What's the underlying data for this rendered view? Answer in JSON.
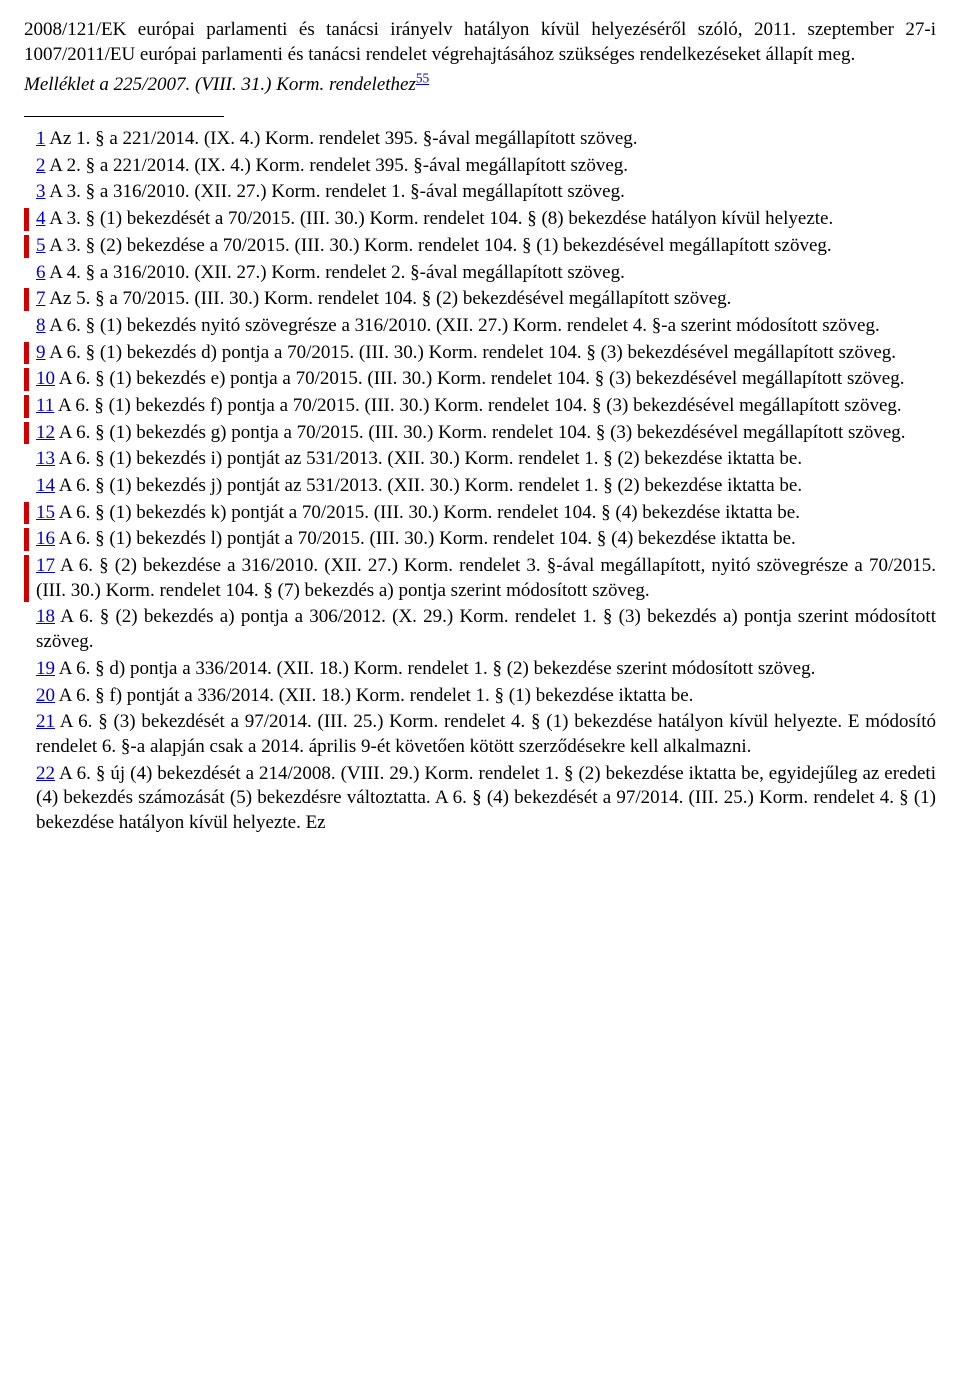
{
  "intro": {
    "p1": "2008/121/EK európai parlamenti és tanácsi irányelv hatályon kívül helyezéséről szóló, 2011. szeptember 27-i 1007/2011/EU európai parlamenti és tanácsi rendelet végrehajtásához szükséges rendelkezéseket állapít meg.",
    "p2_pre": "Melléklet a 225/2007. (VIII. 31.) Korm. rendelethez",
    "p2_sup": "55"
  },
  "footnotes": [
    {
      "n": "1",
      "changed": false,
      "text": " Az 1. § a 221/2014. (IX. 4.) Korm. rendelet 395. §-ával megállapított szöveg."
    },
    {
      "n": "2",
      "changed": false,
      "text": " A 2. § a 221/2014. (IX. 4.) Korm. rendelet 395. §-ával megállapított szöveg."
    },
    {
      "n": "3",
      "changed": false,
      "text": " A 3. § a 316/2010. (XII. 27.) Korm. rendelet 1. §-ával megállapított szöveg."
    },
    {
      "n": "4",
      "changed": true,
      "text": " A 3. § (1) bekezdését a 70/2015. (III. 30.) Korm. rendelet 104. § (8) bekezdése hatályon kívül helyezte."
    },
    {
      "n": "5",
      "changed": true,
      "text": " A 3. § (2) bekezdése a 70/2015. (III. 30.) Korm. rendelet 104. § (1) bekezdésével megállapított szöveg."
    },
    {
      "n": "6",
      "changed": false,
      "text": " A 4. § a 316/2010. (XII. 27.) Korm. rendelet 2. §-ával megállapított szöveg."
    },
    {
      "n": "7",
      "changed": true,
      "text": " Az 5. § a 70/2015. (III. 30.) Korm. rendelet 104. § (2) bekezdésével megállapított szöveg."
    },
    {
      "n": "8",
      "changed": false,
      "text": " A 6. § (1) bekezdés nyitó szövegrésze a 316/2010. (XII. 27.) Korm. rendelet 4. §-a szerint módosított szöveg."
    },
    {
      "n": "9",
      "changed": true,
      "text": " A 6. § (1) bekezdés d) pontja a 70/2015. (III. 30.) Korm. rendelet 104. § (3) bekezdésével megállapított szöveg."
    },
    {
      "n": "10",
      "changed": true,
      "text": " A 6. § (1) bekezdés e) pontja a 70/2015. (III. 30.) Korm. rendelet 104. § (3) bekezdésével megállapított szöveg."
    },
    {
      "n": "11",
      "changed": true,
      "text": " A 6. § (1) bekezdés f) pontja a 70/2015. (III. 30.) Korm. rendelet 104. § (3) bekezdésével megállapított szöveg."
    },
    {
      "n": "12",
      "changed": true,
      "text": " A 6. § (1) bekezdés g) pontja a 70/2015. (III. 30.) Korm. rendelet 104. § (3) bekezdésével megállapított szöveg."
    },
    {
      "n": "13",
      "changed": false,
      "text": " A 6. § (1) bekezdés i) pontját az 531/2013. (XII. 30.) Korm. rendelet 1. § (2) bekezdése iktatta be."
    },
    {
      "n": "14",
      "changed": false,
      "text": " A 6. § (1) bekezdés j) pontját az 531/2013. (XII. 30.) Korm. rendelet 1. § (2) bekezdése iktatta be."
    },
    {
      "n": "15",
      "changed": true,
      "text": " A 6. § (1) bekezdés k) pontját a 70/2015. (III. 30.) Korm. rendelet 104. § (4) bekezdése iktatta be."
    },
    {
      "n": "16",
      "changed": true,
      "text": " A 6. § (1) bekezdés l) pontját a 70/2015. (III. 30.) Korm. rendelet 104. § (4) bekezdése iktatta be."
    },
    {
      "n": "17",
      "changed": true,
      "text": " A 6. § (2) bekezdése a 316/2010. (XII. 27.) Korm. rendelet 3. §-ával megállapított, nyitó szövegrésze a 70/2015. (III. 30.) Korm. rendelet 104. § (7) bekezdés a) pontja szerint módosított szöveg."
    },
    {
      "n": "18",
      "changed": false,
      "text": " A 6. § (2) bekezdés a) pontja a 306/2012. (X. 29.) Korm. rendelet 1. § (3) bekezdés a) pontja szerint módosított szöveg."
    },
    {
      "n": "19",
      "changed": false,
      "text": " A 6. § d) pontja a 336/2014. (XII. 18.) Korm. rendelet 1. § (2) bekezdése szerint módosított szöveg."
    },
    {
      "n": "20",
      "changed": false,
      "text": " A 6. § f) pontját a 336/2014. (XII. 18.) Korm. rendelet 1. § (1) bekezdése iktatta be."
    },
    {
      "n": "21",
      "changed": false,
      "text": " A 6. § (3) bekezdését a 97/2014. (III. 25.) Korm. rendelet 4. § (1) bekezdése hatályon kívül helyezte. E módosító rendelet 6. §-a alapján csak a 2014. április 9-ét követően kötött szerződésekre kell alkalmazni."
    },
    {
      "n": "22",
      "changed": false,
      "text": " A 6. § új (4) bekezdését a 214/2008. (VIII. 29.) Korm. rendelet 1. § (2) bekezdése iktatta be, egyidejűleg az eredeti (4) bekezdés számozását (5) bekezdésre változtatta. A 6. § (4) bekezdését a 97/2014. (III. 25.) Korm. rendelet 4. § (1) bekezdése hatályon kívül helyezte. Ez"
    }
  ]
}
